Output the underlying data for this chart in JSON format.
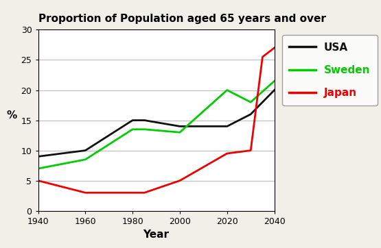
{
  "title": "Proportion of Population aged 65 years and over",
  "xlabel": "Year",
  "ylabel": "%",
  "background_color": "#f0f0e8",
  "plot_bg": "#ffffff",
  "ylim": [
    0,
    30
  ],
  "xlim": [
    1940,
    2040
  ],
  "xticks": [
    1940,
    1960,
    1980,
    2000,
    2020,
    2040
  ],
  "yticks": [
    0,
    5,
    10,
    15,
    20,
    25,
    30
  ],
  "usa": {
    "x": [
      1940,
      1960,
      1980,
      1985,
      2000,
      2020,
      2030,
      2040
    ],
    "y": [
      9.0,
      10.0,
      15.0,
      15.0,
      14.0,
      14.0,
      16.0,
      20.0
    ],
    "color": "#111111",
    "label": "USA",
    "linewidth": 2.0,
    "linestyle": "-"
  },
  "sweden": {
    "x": [
      1940,
      1960,
      1980,
      1985,
      2000,
      2020,
      2030,
      2040
    ],
    "y": [
      7.0,
      8.5,
      13.5,
      13.5,
      13.0,
      20.0,
      18.0,
      21.5
    ],
    "color": "#00cc00",
    "label": "Sweden",
    "linewidth": 2.0,
    "linestyle": "-"
  },
  "japan": {
    "x": [
      1940,
      1960,
      1980,
      1985,
      2000,
      2020,
      2030,
      2035,
      2040
    ],
    "y": [
      5.0,
      3.0,
      3.0,
      3.0,
      5.0,
      9.5,
      10.0,
      25.5,
      27.0
    ],
    "color": "#ee0000",
    "label": "Japan",
    "linewidth": 2.0,
    "linestyle": "-"
  },
  "legend_usa_color": "#111111",
  "legend_sweden_color": "#00cc00",
  "legend_japan_color": "#ee0000",
  "grid_color": "#bbbbbb",
  "grid_linewidth": 0.8
}
